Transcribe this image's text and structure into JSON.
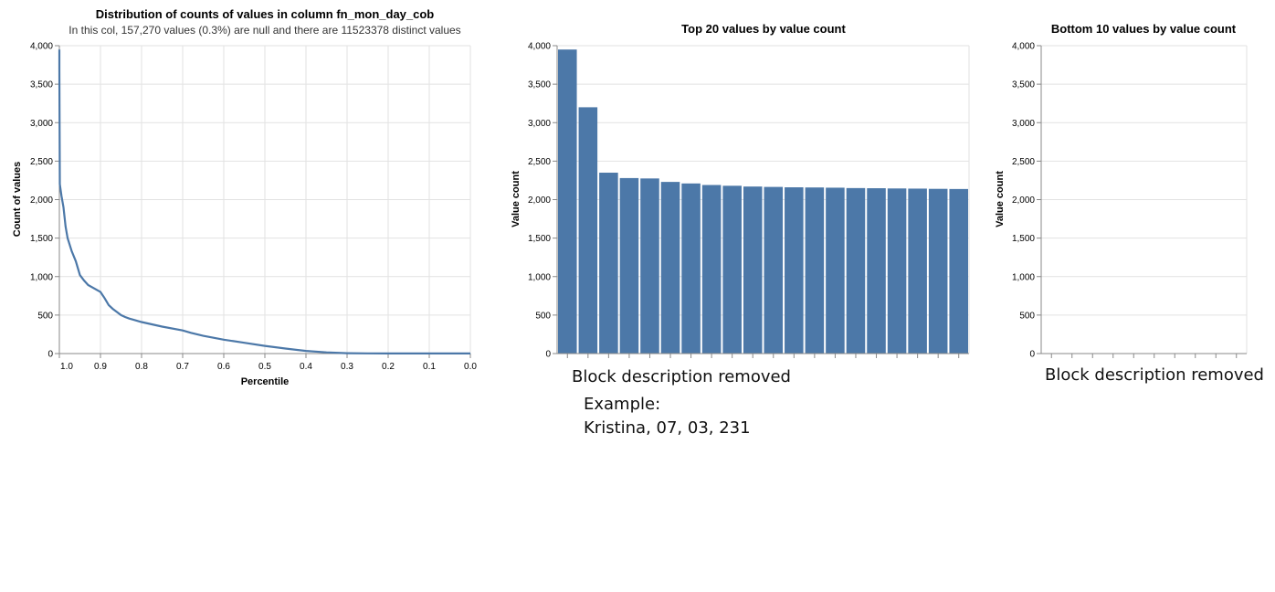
{
  "chart_data": [
    {
      "type": "line",
      "title": "Distribution of counts of values in column fn_mon_day_cob",
      "subtitle": "In this col, 157,270 values (0.3%) are null and there are 11523378 distinct values",
      "xlabel": "Percentile",
      "ylabel": "Count of values",
      "xlim": [
        1.0,
        0.0
      ],
      "ylim": [
        0,
        4000
      ],
      "x_ticks": [
        "1.0",
        "0.9",
        "0.8",
        "0.7",
        "0.6",
        "0.5",
        "0.4",
        "0.3",
        "0.2",
        "0.1",
        "0.0"
      ],
      "y_ticks": [
        "0",
        "500",
        "1,000",
        "1,500",
        "2,000",
        "2,500",
        "3,000",
        "3,500",
        "4,000"
      ],
      "grid": true,
      "color": "#4c78a8",
      "x": [
        1.0,
        1.0,
        0.999,
        0.995,
        0.99,
        0.985,
        0.98,
        0.97,
        0.96,
        0.95,
        0.94,
        0.93,
        0.9,
        0.89,
        0.88,
        0.87,
        0.86,
        0.85,
        0.84,
        0.83,
        0.82,
        0.8,
        0.75,
        0.7,
        0.68,
        0.65,
        0.6,
        0.55,
        0.5,
        0.45,
        0.4,
        0.35,
        0.3,
        0.25,
        0.2,
        0.15,
        0.1,
        0.05,
        0.0
      ],
      "y": [
        3950,
        3700,
        2200,
        2050,
        1900,
        1650,
        1500,
        1330,
        1200,
        1020,
        950,
        890,
        800,
        720,
        630,
        580,
        540,
        500,
        475,
        455,
        440,
        410,
        350,
        300,
        270,
        230,
        180,
        140,
        100,
        65,
        35,
        15,
        5,
        2,
        1,
        1,
        1,
        1,
        1
      ]
    },
    {
      "type": "bar",
      "title": "Top 20 values by value count",
      "xlabel": "",
      "ylabel": "Value count",
      "ylim": [
        0,
        4000
      ],
      "y_ticks": [
        "0",
        "500",
        "1,000",
        "1,500",
        "2,000",
        "2,500",
        "3,000",
        "3,500",
        "4,000"
      ],
      "grid": true,
      "color": "#4c78a8",
      "values": [
        3950,
        3200,
        2350,
        2280,
        2275,
        2230,
        2210,
        2190,
        2180,
        2170,
        2165,
        2160,
        2158,
        2155,
        2150,
        2148,
        2145,
        2143,
        2140,
        2138
      ]
    },
    {
      "type": "bar",
      "title": "Bottom 10 values by value count",
      "xlabel": "",
      "ylabel": "Value count",
      "ylim": [
        0,
        4000
      ],
      "y_ticks": [
        "0",
        "500",
        "1,000",
        "1,500",
        "2,000",
        "2,500",
        "3,000",
        "3,500",
        "4,000"
      ],
      "grid": true,
      "color": "#4c78a8",
      "values": [
        1,
        1,
        1,
        1,
        1,
        1,
        1,
        1,
        1,
        1
      ]
    }
  ],
  "annotations": {
    "middle_block": "Block description removed",
    "example_label": "Example:",
    "example_value": "Kristina, 07, 03, 231",
    "right_block": "Block description removed"
  }
}
